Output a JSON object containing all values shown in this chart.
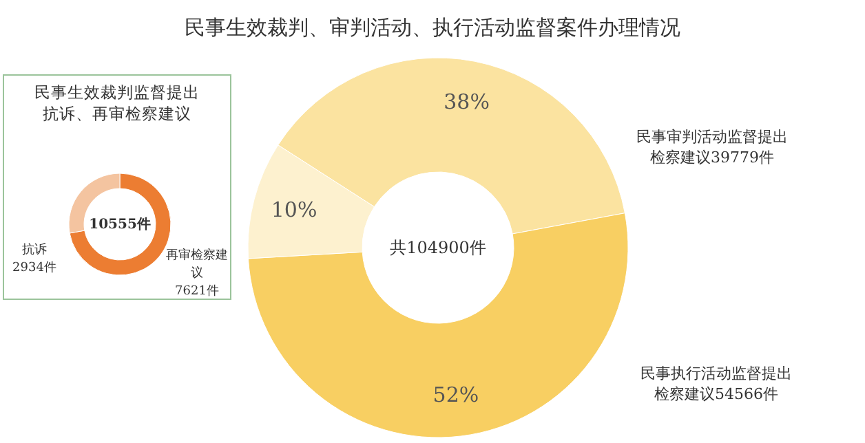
{
  "chart_data": [
    {
      "type": "donut",
      "title": "民事生效裁判、审判活动、执行活动监督案件办理情况",
      "categories": [
        "民事审判活动监督提出检察建议39779件",
        "民事执行活动监督提出检察建议54566件",
        null
      ],
      "values": [
        38,
        52,
        10
      ],
      "value_labels": [
        "38%",
        "52%",
        "10%"
      ],
      "colors": [
        "#fbe3a0",
        "#f8cf62",
        "#fdf1cf"
      ],
      "annotations": [
        "共104900件"
      ]
    },
    {
      "type": "donut",
      "title": "民事生效裁判监督提出抗诉、再审检察建议",
      "categories": [
        "再审检察建议",
        "抗诉"
      ],
      "values": [
        7621,
        2934
      ],
      "value_labels": [
        "7621件",
        "2934件"
      ],
      "colors": [
        "#ec7d32",
        "#f4c4a0"
      ],
      "annotations": [
        "10555件"
      ]
    }
  ]
}
